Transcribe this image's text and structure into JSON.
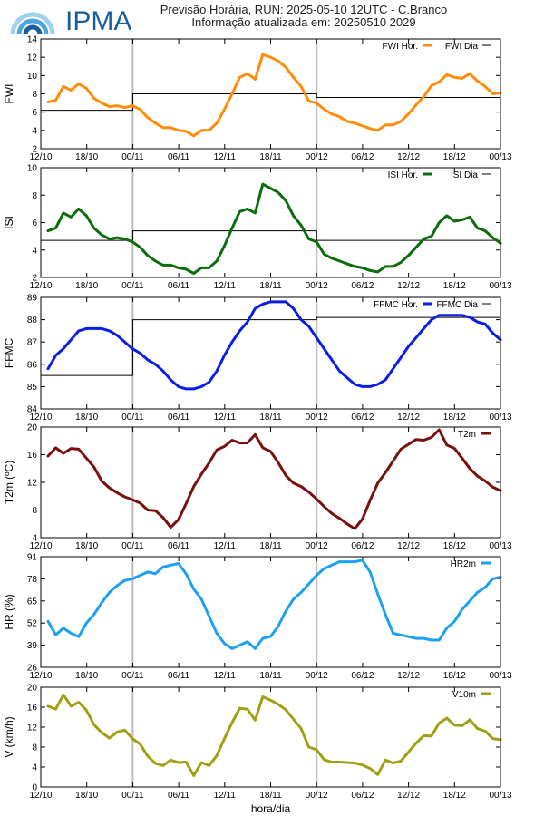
{
  "header": {
    "line1": "Previsão Horária, RUN: 2025-05-10 12UTC - C.Branco",
    "line2": "Informação atualizada em: 20250510 2029"
  },
  "logo": {
    "text": "IPMA"
  },
  "colors": {
    "fwi": "#ff8c0a",
    "isi": "#0a6e0a",
    "ffmc": "#0a1ee6",
    "t2m": "#781010",
    "hr": "#1ea0f0",
    "wind": "#a0a014",
    "daily": "#000000",
    "separator": "#bbbbbb"
  },
  "chart_data": [
    {
      "type": "line",
      "ylabel": "FWI",
      "ylim": [
        2,
        14
      ],
      "yticks": [
        2,
        4,
        6,
        8,
        10,
        12,
        14
      ],
      "series": [
        {
          "name": "FWI Hor.",
          "values": [
            7.1,
            7.3,
            8.8,
            8.4,
            9.1,
            8.6,
            7.5,
            7.0,
            6.6,
            6.7,
            6.5,
            6.7,
            6.3,
            5.4,
            4.8,
            4.3,
            4.3,
            4.0,
            3.9,
            3.4,
            4.0,
            4.0,
            4.8,
            6.3,
            8.0,
            9.8,
            10.2,
            9.6,
            12.3,
            12.0,
            11.6,
            10.9,
            9.8,
            8.8,
            7.2,
            7.0,
            6.3,
            5.8,
            5.5,
            5.0,
            4.8,
            4.5,
            4.2,
            4.0,
            4.6,
            4.6,
            5.0,
            5.8,
            6.8,
            7.7,
            8.9,
            9.3,
            10.1,
            9.8,
            9.7,
            10.2,
            9.4,
            8.8,
            8.0,
            8.1
          ]
        },
        {
          "name": "FWI Dia",
          "daily": [
            6.2,
            8.0,
            7.6
          ]
        }
      ]
    },
    {
      "type": "line",
      "ylabel": "ISI",
      "ylim": [
        2,
        10
      ],
      "yticks": [
        2,
        4,
        6,
        8,
        10
      ],
      "series": [
        {
          "name": "ISI Hor.",
          "values": [
            5.4,
            5.6,
            6.7,
            6.4,
            7.0,
            6.5,
            5.6,
            5.1,
            4.8,
            4.9,
            4.8,
            4.6,
            4.2,
            3.6,
            3.2,
            2.9,
            2.9,
            2.7,
            2.6,
            2.3,
            2.7,
            2.7,
            3.2,
            4.3,
            5.6,
            6.8,
            7.0,
            6.7,
            8.8,
            8.5,
            8.2,
            7.6,
            6.5,
            5.8,
            4.8,
            4.6,
            3.7,
            3.4,
            3.2,
            3.0,
            2.8,
            2.7,
            2.5,
            2.4,
            2.8,
            2.8,
            3.1,
            3.6,
            4.2,
            4.8,
            5.0,
            6.0,
            6.5,
            6.1,
            6.2,
            6.4,
            5.6,
            5.4,
            4.9,
            4.5
          ]
        },
        {
          "name": "ISI Dia",
          "daily": [
            4.7,
            5.4,
            4.7
          ]
        }
      ]
    },
    {
      "type": "line",
      "ylabel": "FFMC",
      "ylim": [
        84,
        89
      ],
      "yticks": [
        84,
        85,
        86,
        87,
        88,
        89
      ],
      "series": [
        {
          "name": "FFMC Hor.",
          "values": [
            85.8,
            86.4,
            86.7,
            87.1,
            87.5,
            87.6,
            87.6,
            87.6,
            87.5,
            87.3,
            87.0,
            86.7,
            86.5,
            86.2,
            86.0,
            85.7,
            85.3,
            85.0,
            84.9,
            84.9,
            85.0,
            85.2,
            85.7,
            86.4,
            87.0,
            87.5,
            87.9,
            88.5,
            88.7,
            88.8,
            88.8,
            88.8,
            88.5,
            88.0,
            87.7,
            87.2,
            86.7,
            86.2,
            85.7,
            85.4,
            85.1,
            85.0,
            85.0,
            85.1,
            85.3,
            85.8,
            86.3,
            86.8,
            87.2,
            87.6,
            88.0,
            88.2,
            88.2,
            88.2,
            88.2,
            88.1,
            87.9,
            87.8,
            87.4,
            87.1
          ]
        },
        {
          "name": "FFMC Dia",
          "daily": [
            85.5,
            88.0,
            88.1
          ]
        }
      ]
    },
    {
      "type": "line",
      "ylabel": "T2m (ºC)",
      "ylim": [
        4,
        20
      ],
      "yticks": [
        4,
        8,
        12,
        16,
        20
      ],
      "series": [
        {
          "name": "T2m",
          "values": [
            15.8,
            17.0,
            16.2,
            16.9,
            16.8,
            15.5,
            14.2,
            12.2,
            11.2,
            10.5,
            9.9,
            9.5,
            9.0,
            8.0,
            7.9,
            6.9,
            5.5,
            6.6,
            8.9,
            11.4,
            13.2,
            14.8,
            16.7,
            17.2,
            18.1,
            17.7,
            17.7,
            18.9,
            17.0,
            16.5,
            14.9,
            13.0,
            11.9,
            11.4,
            10.6,
            9.6,
            8.5,
            7.5,
            6.8,
            6.0,
            5.3,
            6.7,
            9.4,
            11.9,
            13.4,
            15.1,
            16.8,
            17.5,
            18.2,
            18.1,
            18.5,
            19.6,
            17.4,
            16.9,
            15.5,
            14.0,
            12.9,
            12.2,
            11.3,
            10.8
          ]
        }
      ]
    },
    {
      "type": "line",
      "ylabel": "HR (%)",
      "ylim": [
        26,
        91
      ],
      "yticks": [
        26,
        39,
        52,
        65,
        78,
        91
      ],
      "series": [
        {
          "name": "HR2m",
          "values": [
            53,
            45,
            49,
            46,
            44,
            52,
            57,
            64,
            70,
            74,
            77,
            78,
            80,
            82,
            81,
            85,
            86,
            87,
            81,
            72,
            66,
            56,
            46,
            40,
            37,
            39,
            41,
            37,
            43,
            44,
            50,
            59,
            66,
            70,
            75,
            80,
            84,
            86,
            88,
            88,
            88,
            89,
            82,
            69,
            57,
            46,
            45,
            44,
            43,
            43,
            42,
            42,
            49,
            53,
            60,
            65,
            70,
            73,
            78,
            79
          ]
        }
      ]
    },
    {
      "type": "line",
      "ylabel": "V (km/h)",
      "ylim": [
        0,
        20
      ],
      "yticks": [
        0,
        4,
        8,
        12,
        16,
        20
      ],
      "series": [
        {
          "name": "V10m",
          "values": [
            16.2,
            15.6,
            18.5,
            16.2,
            17.0,
            15.4,
            12.5,
            10.9,
            9.8,
            11.0,
            11.4,
            9.7,
            8.6,
            6.2,
            4.7,
            4.3,
            5.4,
            4.9,
            5.0,
            2.3,
            4.9,
            4.3,
            6.3,
            9.7,
            12.9,
            15.8,
            15.6,
            13.4,
            18.1,
            17.4,
            16.6,
            15.5,
            13.6,
            11.7,
            8.0,
            7.5,
            5.5,
            5.0,
            5.0,
            4.9,
            4.8,
            4.4,
            3.7,
            2.5,
            5.4,
            4.8,
            5.2,
            7.0,
            8.8,
            10.3,
            10.2,
            12.8,
            13.8,
            12.4,
            12.3,
            13.5,
            11.7,
            11.2,
            9.7,
            9.5
          ]
        }
      ]
    }
  ],
  "xaxis": {
    "ticks": [
      "12/10",
      "18/10",
      "00/11",
      "06/11",
      "12/11",
      "18/11",
      "00/12",
      "06/12",
      "12/12",
      "18/12",
      "00/13"
    ],
    "label": "hora/dia"
  }
}
